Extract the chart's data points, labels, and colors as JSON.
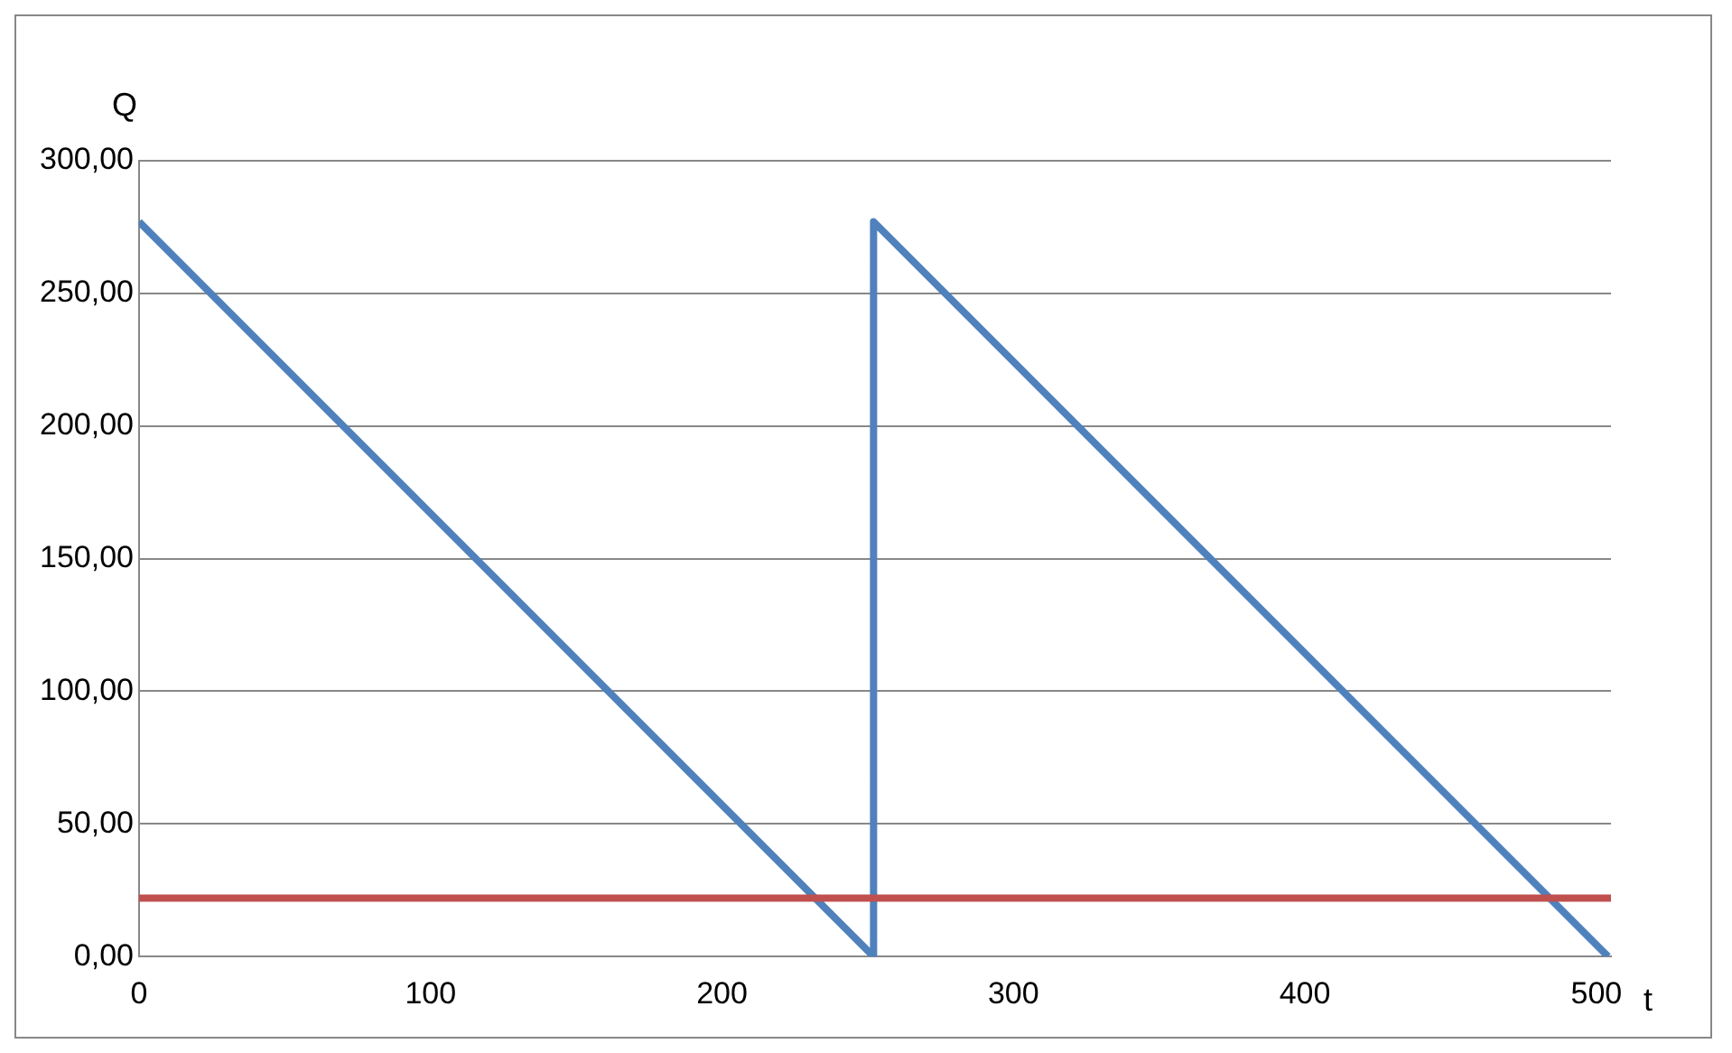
{
  "chart_data": {
    "type": "line",
    "xlabel": "t",
    "ylabel": "Q",
    "series": [
      {
        "color": "#4f81bd",
        "x": [
          0,
          252,
          252,
          504
        ],
        "values": [
          277,
          0,
          277,
          0
        ]
      }
    ],
    "xlim": [
      0,
      505
    ],
    "xticks": [
      0,
      100,
      200,
      300,
      400,
      500
    ],
    "ylim": [
      0,
      300
    ],
    "yticks": [
      {
        "value": 0,
        "label": "0,00"
      },
      {
        "value": 50,
        "label": "50,00"
      },
      {
        "value": 100,
        "label": "100,00"
      },
      {
        "value": 150,
        "label": "150,00"
      },
      {
        "value": 200,
        "label": "200,00"
      },
      {
        "value": 250,
        "label": "250,00"
      },
      {
        "value": 300,
        "label": "300,00"
      }
    ],
    "ref_lines": [
      {
        "axis": "y",
        "value": 22,
        "color": "#c0504d"
      }
    ],
    "grid": "y",
    "legend": false,
    "marker": "none",
    "line_style": "solid"
  }
}
